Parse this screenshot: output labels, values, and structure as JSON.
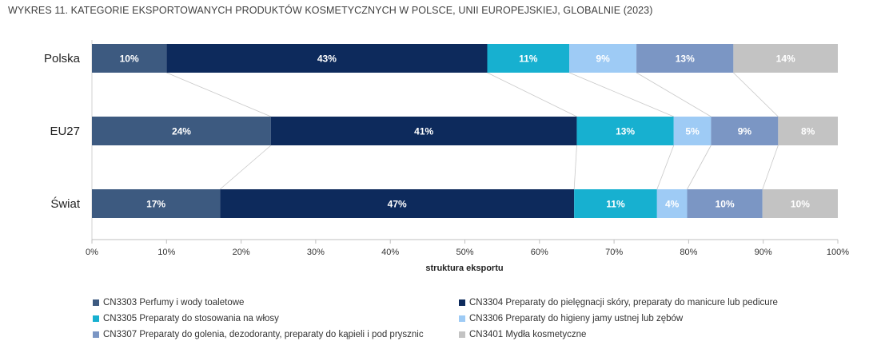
{
  "title": "WYKRES 11. KATEGORIE EKSPORTOWANYCH PRODUKTÓW KOSMETYCZNYCH W POLSCE, UNII EUROPEJSKIEJ, GLOBALNIE (2023)",
  "chart_data": {
    "type": "bar",
    "orientation": "horizontal",
    "stacked": "percent",
    "categories": [
      "Polska",
      "EU27",
      "Świat"
    ],
    "series": [
      {
        "name": "CN3303 Perfumy i wody toaletowe",
        "values": [
          10,
          24,
          17
        ],
        "labels": [
          "10%",
          "24%",
          "17%"
        ],
        "color": "#3d5a80"
      },
      {
        "name": "CN3304 Preparaty do pielęgnacji skóry, preparaty do manicure lub pedicure",
        "values": [
          43,
          41,
          47
        ],
        "labels": [
          "43%",
          "41%",
          "47%"
        ],
        "color": "#0d2a5c"
      },
      {
        "name": "CN3305 Preparaty do stosowania na włosy",
        "values": [
          11,
          13,
          11
        ],
        "labels": [
          "11%",
          "13%",
          "11%"
        ],
        "color": "#17b0d0"
      },
      {
        "name": "CN3306 Preparaty do higieny jamy ustnej lub zębów",
        "values": [
          9,
          5,
          4
        ],
        "labels": [
          "9%",
          "5%",
          "4%"
        ],
        "color": "#9ecbf5"
      },
      {
        "name": "CN3307 Preparaty do golenia, dezodoranty, preparaty do kąpieli i pod prysznic",
        "values": [
          13,
          9,
          10
        ],
        "labels": [
          "13%",
          "9%",
          "10%"
        ],
        "color": "#7b96c4"
      },
      {
        "name": "CN3401 Mydła kosmetyczne",
        "values": [
          14,
          8,
          10
        ],
        "labels": [
          "14%",
          "8%",
          "10%"
        ],
        "color": "#c3c3c3"
      }
    ],
    "xlim": [
      0,
      100
    ],
    "xticks": [
      "0%",
      "10%",
      "20%",
      "30%",
      "40%",
      "50%",
      "60%",
      "70%",
      "80%",
      "90%",
      "100%"
    ],
    "xlabel": "struktura eksportu",
    "ylabel": "",
    "grid": true,
    "legend_position": "bottom",
    "connector_lines": true
  }
}
